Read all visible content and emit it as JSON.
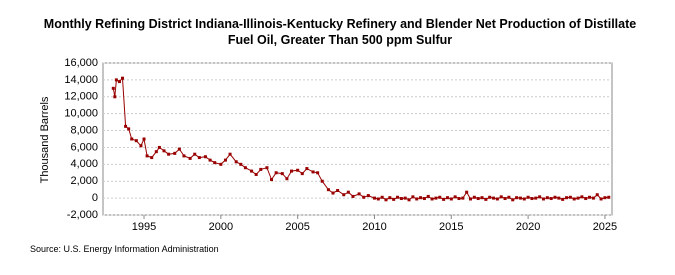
{
  "chart_data": {
    "type": "line",
    "title": "Monthly Refining District Indiana-Illinois-Kentucky Refinery and Blender Net Production of Distillate Fuel Oil, Greater Than 500 ppm Sulfur",
    "y_label": "Thousand Barrels",
    "source": "Source: U.S. Energy Information Administration",
    "color": "#990000",
    "grid": true,
    "xlim": [
      1992.33,
      2025.46
    ],
    "ylim": [
      -2000,
      16000
    ],
    "xticks": [
      1995,
      2000,
      2005,
      2010,
      2015,
      2020,
      2025
    ],
    "yticks": [
      {
        "value": -2000,
        "label": "-2,000"
      },
      0,
      {
        "value": 2000,
        "label": "2,000"
      },
      {
        "value": 4000,
        "label": "4,000"
      },
      {
        "value": 6000,
        "label": "6,000"
      },
      {
        "value": 8000,
        "label": "8,000"
      },
      {
        "value": 10000,
        "label": "10,000"
      },
      {
        "value": 12000,
        "label": "12,000"
      },
      {
        "value": 14000,
        "label": "14,000"
      },
      {
        "value": 16000,
        "label": "16,000"
      }
    ],
    "x": [
      1993.0,
      1993.1,
      1993.2,
      1993.4,
      1993.6,
      1993.8,
      1994.0,
      1994.2,
      1994.5,
      1994.8,
      1995.0,
      1995.2,
      1995.5,
      1995.8,
      1996.0,
      1996.3,
      1996.6,
      1997.0,
      1997.3,
      1997.6,
      1998.0,
      1998.3,
      1998.6,
      1999.0,
      1999.3,
      1999.6,
      2000.0,
      2000.3,
      2000.6,
      2001.0,
      2001.3,
      2001.6,
      2002.0,
      2002.3,
      2002.6,
      2003.0,
      2003.3,
      2003.6,
      2004.0,
      2004.3,
      2004.6,
      2005.0,
      2005.3,
      2005.6,
      2006.0,
      2006.3,
      2006.6,
      2007.0,
      2007.3,
      2007.6,
      2008.0,
      2008.3,
      2008.6,
      2009.0,
      2009.3,
      2009.6,
      2010.0,
      2010.25,
      2010.5,
      2010.75,
      2011.0,
      2011.25,
      2011.5,
      2011.75,
      2012.0,
      2012.25,
      2012.5,
      2012.75,
      2013.0,
      2013.25,
      2013.5,
      2013.75,
      2014.0,
      2014.25,
      2014.5,
      2014.75,
      2015.0,
      2015.25,
      2015.5,
      2015.75,
      2016.0,
      2016.25,
      2016.5,
      2016.75,
      2017.0,
      2017.25,
      2017.5,
      2017.75,
      2018.0,
      2018.25,
      2018.5,
      2018.75,
      2019.0,
      2019.25,
      2019.5,
      2019.75,
      2020.0,
      2020.25,
      2020.5,
      2020.75,
      2021.0,
      2021.25,
      2021.5,
      2021.75,
      2022.0,
      2022.25,
      2022.5,
      2022.75,
      2023.0,
      2023.25,
      2023.5,
      2023.75,
      2024.0,
      2024.25,
      2024.5,
      2024.75,
      2025.0,
      2025.25
    ],
    "values": [
      13000,
      12000,
      14000,
      13800,
      14200,
      8500,
      8200,
      7000,
      6800,
      6200,
      7000,
      5000,
      4800,
      5500,
      6000,
      5600,
      5200,
      5300,
      5800,
      5000,
      4700,
      5200,
      4800,
      4900,
      4500,
      4200,
      4000,
      4500,
      5200,
      4300,
      4000,
      3600,
      3200,
      2800,
      3400,
      3600,
      2200,
      3000,
      2900,
      2300,
      3200,
      3300,
      2900,
      3500,
      3100,
      3000,
      2000,
      1000,
      600,
      900,
      400,
      700,
      200,
      500,
      100,
      300,
      0,
      -100,
      100,
      -200,
      50,
      -150,
      100,
      -50,
      0,
      -200,
      150,
      -100,
      50,
      -50,
      200,
      -100,
      0,
      100,
      -150,
      50,
      -100,
      150,
      -50,
      0,
      700,
      -100,
      100,
      -50,
      50,
      -150,
      100,
      0,
      -100,
      150,
      -50,
      100,
      -200,
      50,
      0,
      -100,
      100,
      -50,
      0,
      150,
      -100,
      50,
      -50,
      100,
      0,
      -150,
      50,
      100,
      -100,
      0,
      150,
      -50,
      100,
      0,
      400,
      -100,
      50,
      100
    ]
  }
}
